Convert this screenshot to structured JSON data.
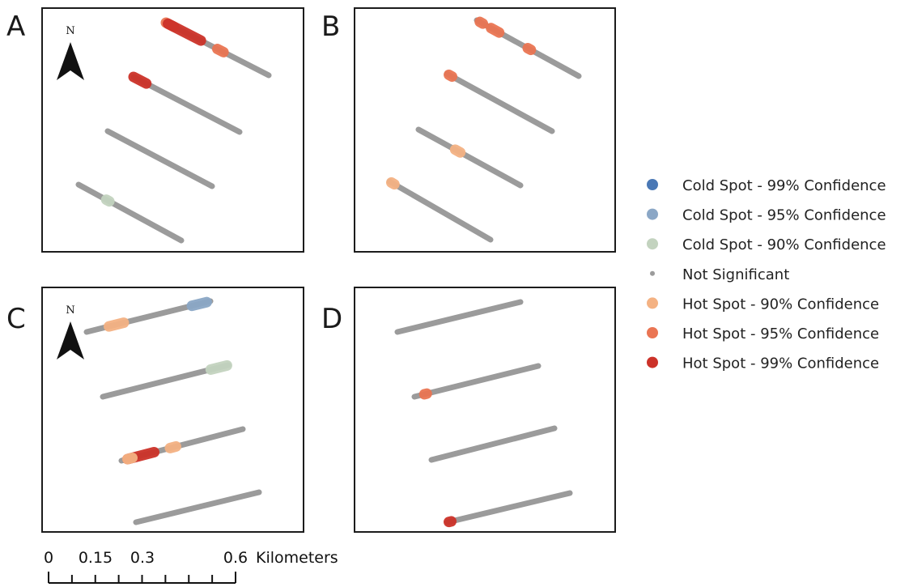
{
  "panels": [
    {
      "label": "A",
      "north_arrow": true,
      "transects": [
        {
          "hotspots": [
            {
              "cls": "hot95",
              "t": 0.0,
              "u": 0.08
            },
            {
              "cls": "hot99",
              "t": 0.02,
              "u": 0.34
            },
            {
              "cls": "hot95",
              "t": 0.5,
              "u": 0.56
            }
          ]
        },
        {
          "hotspots": [
            {
              "cls": "hot99",
              "t": 0.0,
              "u": 0.12
            }
          ]
        },
        {
          "hotspots": []
        },
        {
          "hotspots": [
            {
              "cls": "cold90",
              "t": 0.27,
              "u": 0.3
            }
          ]
        }
      ]
    },
    {
      "label": "B",
      "north_arrow": false,
      "transects": [
        {
          "hotspots": [
            {
              "cls": "hot95",
              "t": 0.03,
              "u": 0.06
            },
            {
              "cls": "hot95",
              "t": 0.14,
              "u": 0.22
            },
            {
              "cls": "hot95",
              "t": 0.5,
              "u": 0.53
            }
          ]
        },
        {
          "hotspots": [
            {
              "cls": "hot95",
              "t": 0.02,
              "u": 0.05
            }
          ]
        },
        {
          "hotspots": [
            {
              "cls": "hot90",
              "t": 0.36,
              "u": 0.41
            }
          ]
        },
        {
          "hotspots": [
            {
              "cls": "hot90",
              "t": 0.02,
              "u": 0.05
            }
          ]
        }
      ]
    },
    {
      "label": "C",
      "north_arrow": true,
      "transects": [
        {
          "hotspots": [
            {
              "cls": "hot90",
              "t": 0.18,
              "u": 0.3
            },
            {
              "cls": "cold95",
              "t": 0.85,
              "u": 0.97
            }
          ]
        },
        {
          "hotspots": [
            {
              "cls": "cold90",
              "t": 0.86,
              "u": 0.99
            }
          ]
        },
        {
          "hotspots": [
            {
              "cls": "hot99",
              "t": 0.05,
              "u": 0.27
            },
            {
              "cls": "hot90",
              "t": 0.05,
              "u": 0.09
            },
            {
              "cls": "hot90",
              "t": 0.4,
              "u": 0.45
            }
          ]
        },
        {
          "hotspots": []
        }
      ]
    },
    {
      "label": "D",
      "north_arrow": false,
      "transects": [
        {
          "hotspots": []
        },
        {
          "hotspots": [
            {
              "cls": "hot95",
              "t": 0.08,
              "u": 0.1
            }
          ]
        },
        {
          "hotspots": []
        },
        {
          "hotspots": [
            {
              "cls": "hot99",
              "t": 0.01,
              "u": 0.03
            }
          ]
        }
      ]
    }
  ],
  "north_label": "N",
  "legend": [
    {
      "key": "cold99",
      "label": "Cold Spot - 99% Confidence",
      "color": "#4a78b5",
      "marker": "dot"
    },
    {
      "key": "cold95",
      "label": "Cold Spot - 95% Confidence",
      "color": "#8ba7c6",
      "marker": "dot"
    },
    {
      "key": "cold90",
      "label": "Cold Spot - 90% Confidence",
      "color": "#c3d3bf",
      "marker": "dot"
    },
    {
      "key": "ns",
      "label": "Not Significant",
      "color": "#9b9b9b",
      "marker": "small"
    },
    {
      "key": "hot90",
      "label": "Hot Spot - 90% Confidence",
      "color": "#f4b283",
      "marker": "dot"
    },
    {
      "key": "hot95",
      "label": "Hot Spot - 95% Confidence",
      "color": "#ea7553",
      "marker": "dot"
    },
    {
      "key": "hot99",
      "label": "Hot Spot - 99% Confidence",
      "color": "#cc3229",
      "marker": "dot"
    }
  ],
  "scale_bar": {
    "ticks": [
      "0",
      "0.15",
      "0.3",
      "0.6"
    ],
    "unit": "Kilometers"
  }
}
